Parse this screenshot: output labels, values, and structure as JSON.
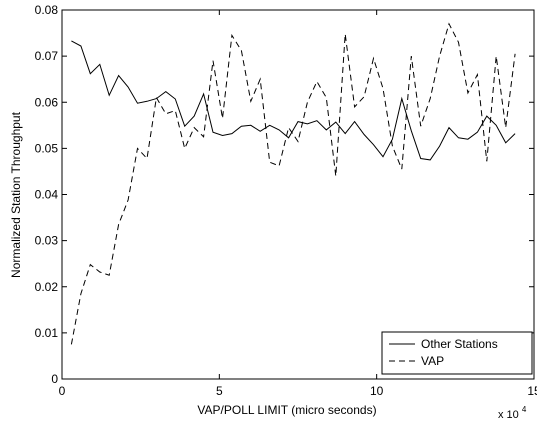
{
  "chart_data": {
    "type": "line",
    "title": "",
    "xlabel": "VAP/POLL LIMIT (micro seconds)",
    "ylabel": "Normalized Station Throughput",
    "x_multiplier_label": {
      "base": "x 10",
      "exponent": "4"
    },
    "xlim": [
      0,
      15
    ],
    "ylim": [
      0,
      0.08
    ],
    "xticks": [
      "0",
      "5",
      "10",
      "15"
    ],
    "yticks": [
      "0",
      "0.01",
      "0.02",
      "0.03",
      "0.04",
      "0.05",
      "0.06",
      "0.07",
      "0.08"
    ],
    "grid": false,
    "legend_position": "bottom-right",
    "x": [
      0.3,
      0.6,
      0.9,
      1.2,
      1.5,
      1.8,
      2.1,
      2.4,
      2.7,
      3.0,
      3.3,
      3.6,
      3.9,
      4.2,
      4.5,
      4.8,
      5.1,
      5.4,
      5.7,
      6.0,
      6.3,
      6.6,
      6.9,
      7.2,
      7.5,
      7.8,
      8.1,
      8.4,
      8.7,
      9.0,
      9.3,
      9.6,
      9.9,
      10.2,
      10.5,
      10.8,
      11.1,
      11.4,
      11.7,
      12.0,
      12.3,
      12.6,
      12.9,
      13.2,
      13.5,
      13.8,
      14.1,
      14.4
    ],
    "series": [
      {
        "name": "Other Stations",
        "style": "solid",
        "color": "#000000",
        "values": [
          0.0733,
          0.0722,
          0.0662,
          0.0682,
          0.0615,
          0.0658,
          0.0633,
          0.0598,
          0.0602,
          0.0608,
          0.0623,
          0.0607,
          0.0548,
          0.057,
          0.0618,
          0.0535,
          0.0528,
          0.0532,
          0.0548,
          0.055,
          0.0537,
          0.055,
          0.054,
          0.0523,
          0.0558,
          0.0553,
          0.056,
          0.054,
          0.0557,
          0.0532,
          0.0558,
          0.053,
          0.0508,
          0.0482,
          0.052,
          0.0608,
          0.0538,
          0.0478,
          0.0475,
          0.0505,
          0.0545,
          0.0523,
          0.052,
          0.0535,
          0.057,
          0.055,
          0.0512,
          0.0532
        ]
      },
      {
        "name": "VAP",
        "style": "dashed",
        "color": "#000000",
        "values": [
          0.0075,
          0.0185,
          0.0248,
          0.0232,
          0.0225,
          0.0335,
          0.0388,
          0.05,
          0.0478,
          0.061,
          0.0575,
          0.0582,
          0.05,
          0.0545,
          0.0525,
          0.069,
          0.0565,
          0.0745,
          0.0712,
          0.0602,
          0.065,
          0.047,
          0.0462,
          0.0545,
          0.0515,
          0.06,
          0.0645,
          0.061,
          0.044,
          0.0748,
          0.059,
          0.0612,
          0.0695,
          0.063,
          0.0505,
          0.0455,
          0.07,
          0.0548,
          0.0608,
          0.07,
          0.077,
          0.073,
          0.062,
          0.066,
          0.0472,
          0.07,
          0.0545,
          0.0705
        ]
      }
    ]
  }
}
